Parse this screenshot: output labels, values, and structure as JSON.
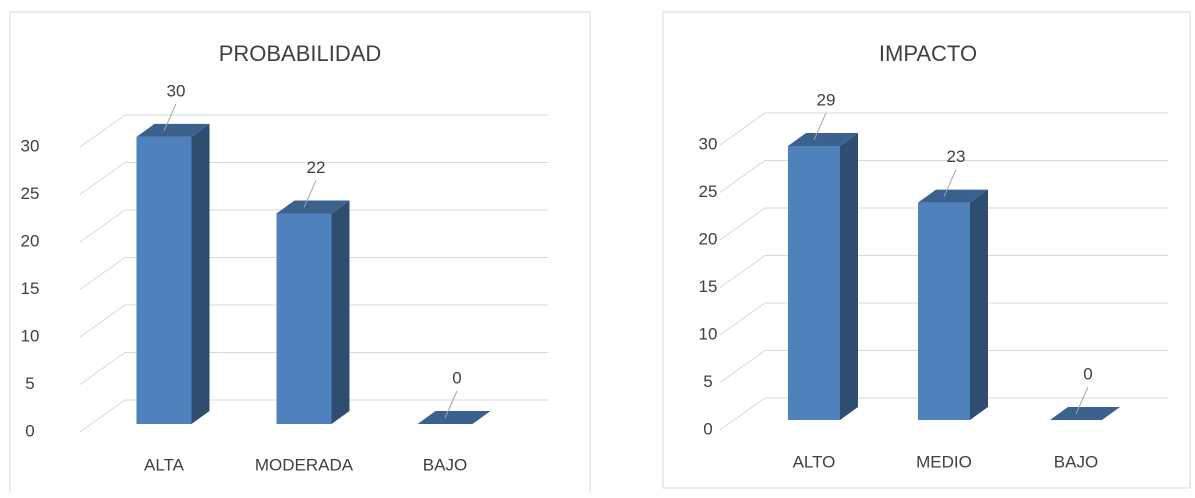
{
  "chart_data": [
    {
      "type": "bar3d",
      "title": "PROBABILIDAD",
      "categories": [
        "ALTA",
        "MODERADA",
        "BAJO"
      ],
      "values": [
        30,
        22,
        0
      ],
      "color": "#4f81bd",
      "ylim": [
        0,
        30
      ],
      "yticks": [
        0,
        5,
        10,
        15,
        20,
        25,
        30
      ],
      "grid": true
    },
    {
      "type": "bar3d",
      "title": "IMPACTO",
      "categories": [
        "ALTO",
        "MEDIO",
        "BAJO"
      ],
      "values": [
        29,
        23,
        0
      ],
      "color": "#4f81bd",
      "ylim": [
        0,
        30
      ],
      "yticks": [
        0,
        5,
        10,
        15,
        20,
        25,
        30
      ],
      "grid": true
    }
  ]
}
